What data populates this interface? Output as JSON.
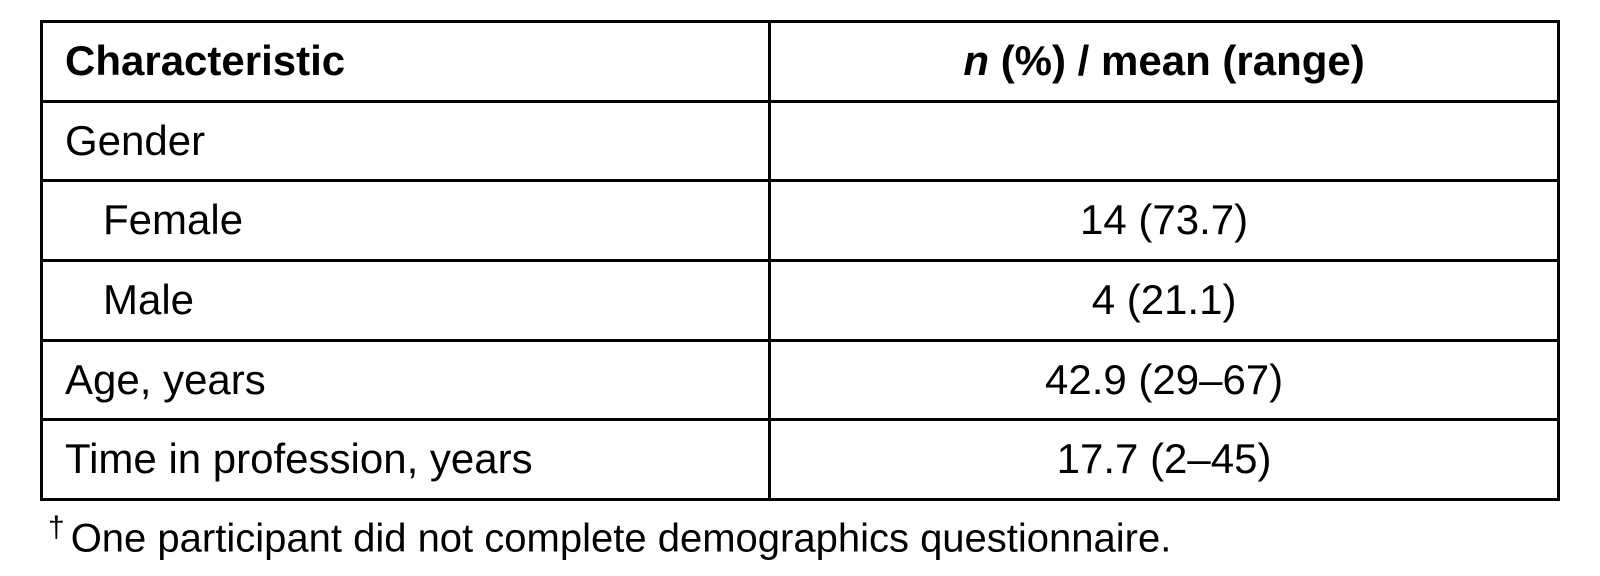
{
  "table": {
    "type": "table",
    "border_color": "#000000",
    "background_color": "#ffffff",
    "text_color": "#000000",
    "font_family": "Arial",
    "header_fontsize": 42,
    "cell_fontsize": 42,
    "columns": [
      {
        "key": "characteristic",
        "label": "Characteristic",
        "align": "left",
        "width_pct": 48
      },
      {
        "key": "value",
        "label_prefix": "n",
        "label_rest": " (%) / mean (range)",
        "align": "center",
        "width_pct": 52
      }
    ],
    "rows": [
      {
        "characteristic": "Gender",
        "value": "",
        "indent": false
      },
      {
        "characteristic": "Female",
        "value": "14 (73.7)",
        "indent": true
      },
      {
        "characteristic": "Male",
        "value": "4 (21.1)",
        "indent": true
      },
      {
        "characteristic": "Age, years",
        "value": "42.9 (29–67)",
        "indent": false
      },
      {
        "characteristic": "Time in profession, years",
        "value": "17.7 (2–45)",
        "indent": false
      }
    ]
  },
  "footnote": {
    "symbol": "†",
    "text": "One participant did not complete demographics questionnaire."
  }
}
